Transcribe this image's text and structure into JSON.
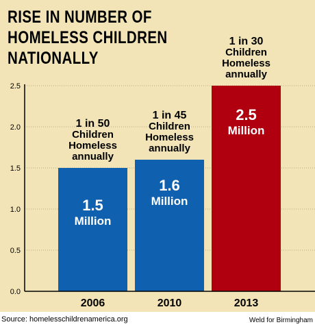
{
  "title": "RISE IN NUMBER OF\nHOMELESS CHILDREN\nNATIONALLY",
  "source": "Source: homelesschildrenamerica.org",
  "credit": "Weld for Birmingham",
  "colors": {
    "background": "#f2e4b6",
    "bar_blue": "#1060b0",
    "bar_red": "#b00010",
    "axis": "#000000",
    "grid": "#b9ad85"
  },
  "chart_data": {
    "type": "bar",
    "title": "RISE IN NUMBER OF HOMELESS CHILDREN NATIONALLY",
    "categories": [
      "2006",
      "2010",
      "2013"
    ],
    "values": [
      1.5,
      1.6,
      2.5
    ],
    "bar_labels": [
      [
        "1.5",
        "Million"
      ],
      [
        "1.6",
        "Million"
      ],
      [
        "2.5",
        "Million"
      ]
    ],
    "bar_colors": [
      "#1060b0",
      "#1060b0",
      "#b00010"
    ],
    "annotations": [
      [
        "1 in 50",
        "Children",
        "Homeless",
        "annually"
      ],
      [
        "1 in 45",
        "Children",
        "Homeless",
        "annually"
      ],
      [
        "1 in 30",
        "Children",
        "Homeless",
        "annually"
      ]
    ],
    "yticks": [
      "0.0",
      "0.5",
      "1.0",
      "1.5",
      "2.0",
      "2.5"
    ],
    "ylim": [
      0,
      2.5
    ],
    "grid": true,
    "xlabel": "",
    "ylabel": ""
  }
}
